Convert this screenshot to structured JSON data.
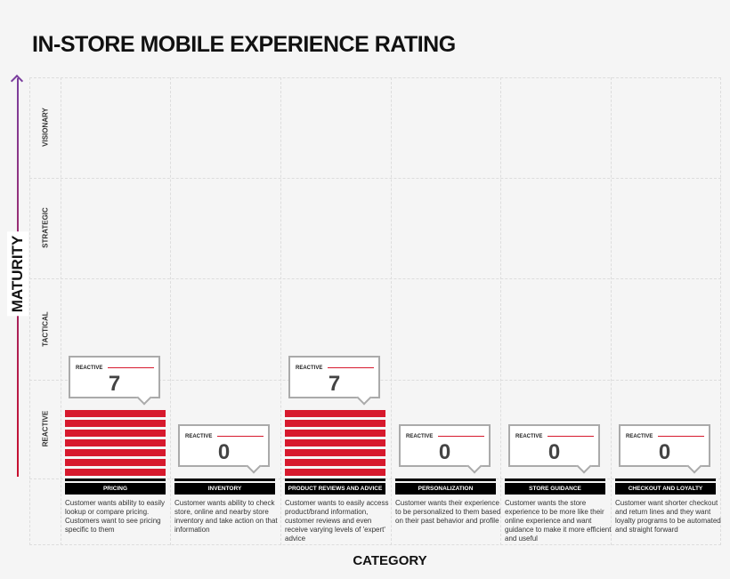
{
  "chart_data": {
    "type": "bar",
    "title": "IN-STORE MOBILE EXPERIENCE RATING",
    "xlabel": "CATEGORY",
    "ylabel": "MATURITY",
    "levels": [
      "REACTIVE",
      "TACTICAL",
      "STRATEGIC",
      "VISIONARY"
    ],
    "categories": [
      "PRICING",
      "INVENTORY",
      "PRODUCT REVIEWS AND ADVICE",
      "PERSONALIZATION",
      "STORE GUIDANCE",
      "CHECKOUT AND LOYALTY"
    ],
    "values": [
      7,
      0,
      7,
      0,
      0,
      0
    ],
    "value_levels": [
      "REACTIVE",
      "REACTIVE",
      "REACTIVE",
      "REACTIVE",
      "REACTIVE",
      "REACTIVE"
    ],
    "descriptions": [
      "Customer wants ability to easily lookup or compare pricing. Customers want to see pricing specific to them",
      "Customer wants ability to check store, online and nearby store inventory and take action on that information",
      "Customer wants to easily access product/brand information, customer reviews and even receive varying levels of 'expert' advice",
      "Customer wants their experience to be personalized to them based on their past behavior and profile",
      "Customer wants the store experience to be more like their online experience and want guidance to make it more efficient and useful",
      "Customer want shorter checkout and return lines and they want loyalty programs to be automated and straight forward"
    ],
    "colors": {
      "bar": "#d7192d",
      "axis_top": "#7b3f9e",
      "axis_bottom": "#c8102e"
    }
  }
}
